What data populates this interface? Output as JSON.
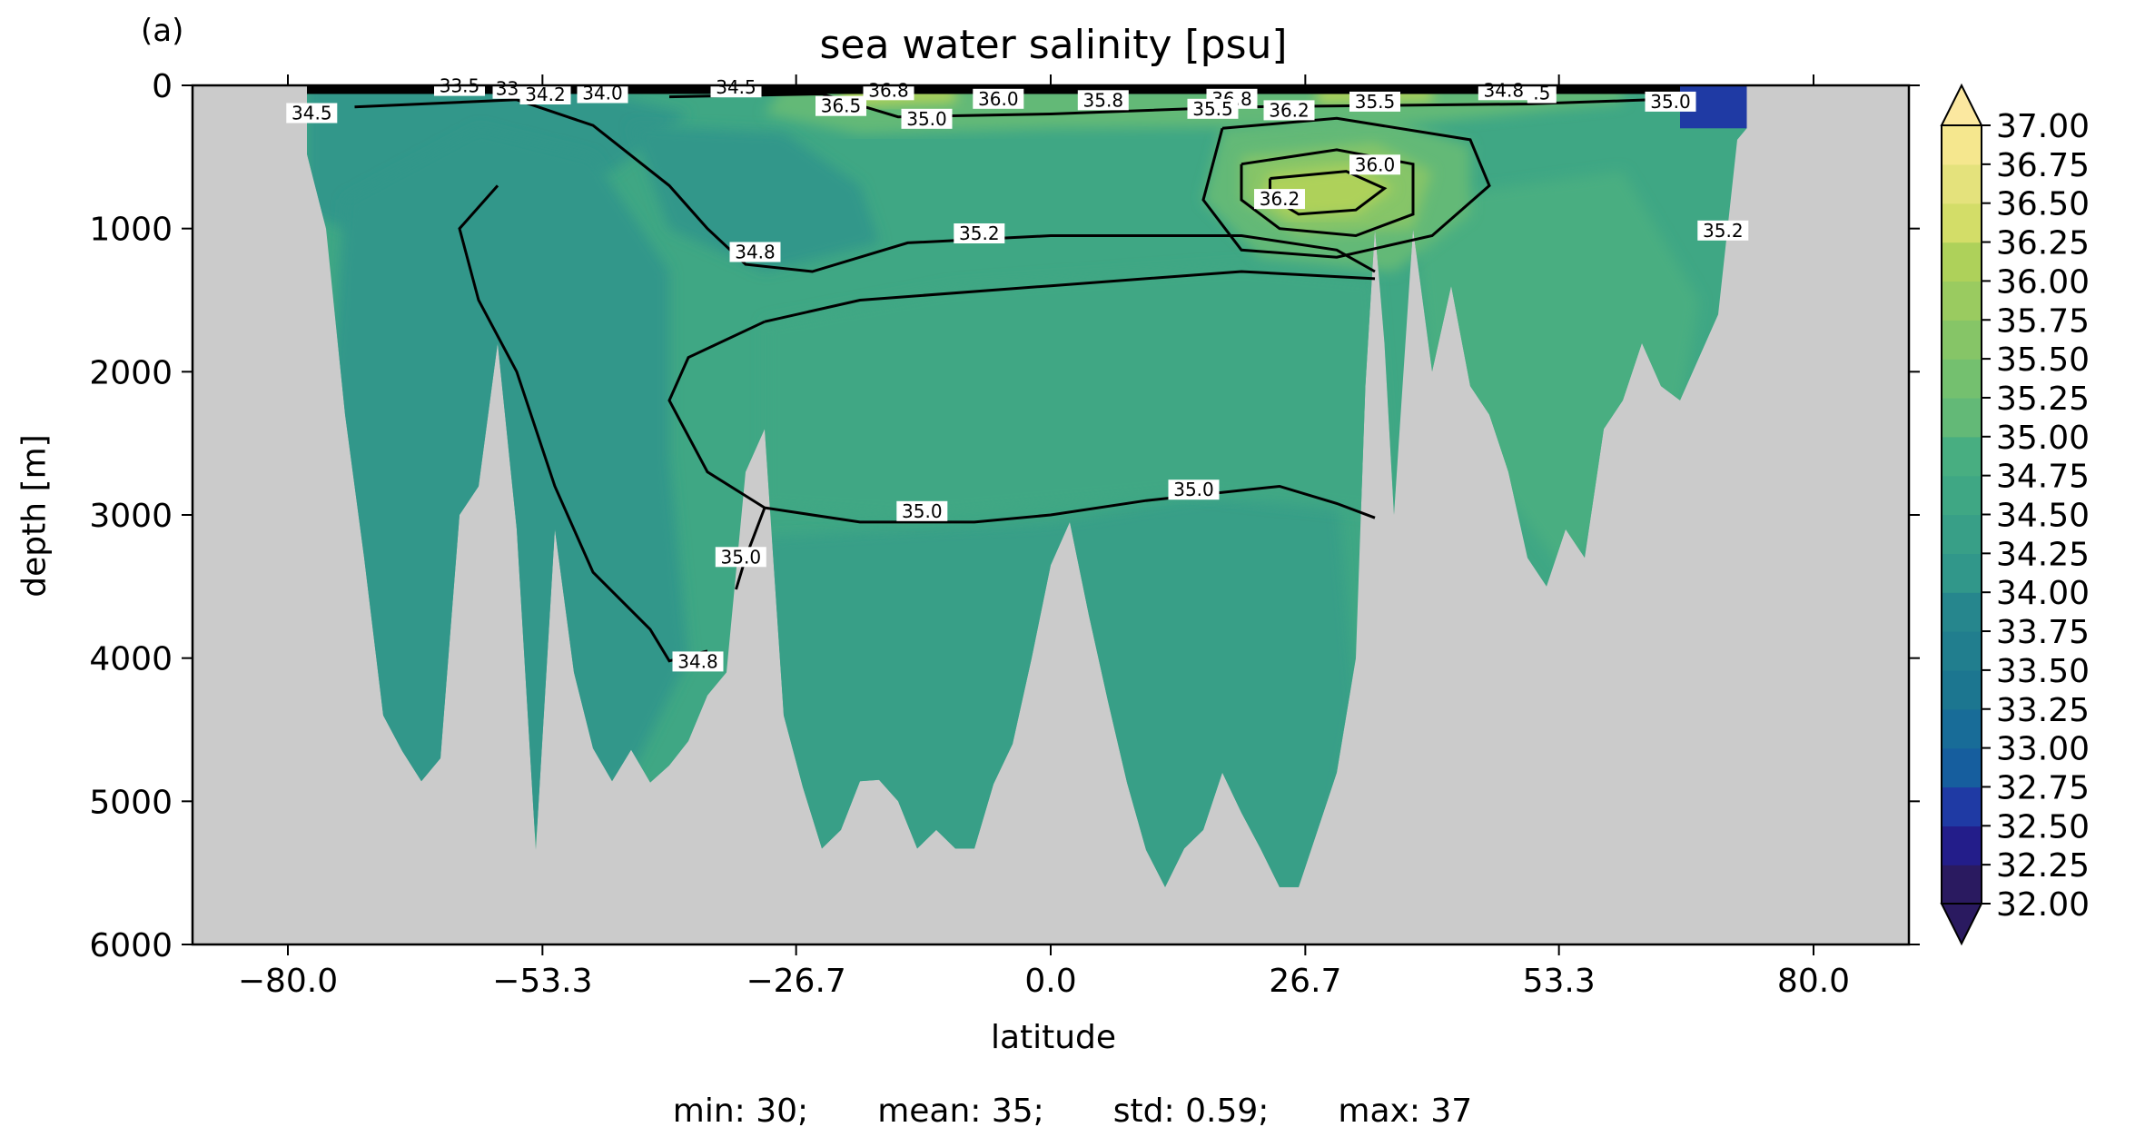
{
  "panel_label": "(a)",
  "stats": {
    "min": "min: 30;",
    "mean": "mean: 35;",
    "std": "std: 0.59;",
    "max": "max: 37"
  },
  "colors": {
    "land_mask": "#cbcbcb",
    "contour_line": "#000000",
    "colormap": [
      "#2a1a60",
      "#231d8a",
      "#1f3aa4",
      "#1a50a4",
      "#165e9e",
      "#186c98",
      "#1c7690",
      "#217e8e",
      "#26868d",
      "#2b8f8b",
      "#31978a",
      "#389f87",
      "#3fa784",
      "#48ae81",
      "#54b37d",
      "#63b977",
      "#74c06f",
      "#86c567",
      "#9acb60",
      "#aed15a",
      "#c1d75a",
      "#d3dd68",
      "#e4e27c",
      "#f5e78e",
      "#fbe8a0"
    ]
  },
  "chart_data": {
    "type": "contour-section",
    "title": "sea water salinity [psu]",
    "xlabel": "latitude",
    "ylabel": "depth [m]",
    "xlim": [
      -90,
      90
    ],
    "ylim": [
      6000,
      0
    ],
    "x_ticks": [
      "−80.0",
      "−53.3",
      "−26.7",
      "0.0",
      "26.7",
      "53.3",
      "80.0"
    ],
    "x_tick_values": [
      -80.0,
      -53.3,
      -26.7,
      0.0,
      26.7,
      53.3,
      80.0
    ],
    "y_ticks": [
      "0",
      "1000",
      "2000",
      "3000",
      "4000",
      "5000",
      "6000"
    ],
    "y_tick_values": [
      0,
      1000,
      2000,
      3000,
      4000,
      5000,
      6000
    ],
    "colorbar": {
      "ticks": [
        "37.00",
        "36.75",
        "36.50",
        "36.25",
        "36.00",
        "35.75",
        "35.50",
        "35.25",
        "35.00",
        "34.75",
        "34.50",
        "34.25",
        "34.00",
        "33.75",
        "33.50",
        "33.25",
        "33.00",
        "32.75",
        "32.50",
        "32.25",
        "32.00"
      ],
      "min": 32.0,
      "max": 37.0,
      "extend": "both"
    },
    "contour_labels": [
      {
        "text": "34.5",
        "lat": -77.5,
        "depth": 200
      },
      {
        "text": "33.5",
        "lat": -62,
        "depth": 10
      },
      {
        "text": "33",
        "lat": -57,
        "depth": 30
      },
      {
        "text": "34.2",
        "lat": -53,
        "depth": 70
      },
      {
        "text": "34.0",
        "lat": -47,
        "depth": 60
      },
      {
        "text": "34.5",
        "lat": -33,
        "depth": 20
      },
      {
        "text": "36.5",
        "lat": -22,
        "depth": 150
      },
      {
        "text": "36.8",
        "lat": -17,
        "depth": 40
      },
      {
        "text": "36.0",
        "lat": -5.5,
        "depth": 100
      },
      {
        "text": "35.0",
        "lat": -13,
        "depth": 240
      },
      {
        "text": "35.8",
        "lat": 5.5,
        "depth": 110
      },
      {
        "text": "36.8",
        "lat": 19,
        "depth": 100
      },
      {
        "text": "35.5",
        "lat": 17,
        "depth": 170
      },
      {
        "text": "36.2",
        "lat": 25,
        "depth": 180
      },
      {
        "text": "35.5",
        "lat": 34,
        "depth": 120
      },
      {
        "text": "34.8",
        "lat": 47.5,
        "depth": 40
      },
      {
        "text": ".5",
        "lat": 51.5,
        "depth": 60
      },
      {
        "text": "35.0",
        "lat": 65,
        "depth": 120
      },
      {
        "text": "36.0",
        "lat": 34,
        "depth": 560
      },
      {
        "text": "36.2",
        "lat": 24,
        "depth": 800
      },
      {
        "text": "35.2",
        "lat": 70.5,
        "depth": 1020
      },
      {
        "text": "34.8",
        "lat": -31,
        "depth": 1170
      },
      {
        "text": "35.2",
        "lat": -7.5,
        "depth": 1040
      },
      {
        "text": "35.0",
        "lat": -13.5,
        "depth": 2980
      },
      {
        "text": "35.0",
        "lat": 15,
        "depth": 2830
      },
      {
        "text": "35.0",
        "lat": -32.5,
        "depth": 3300
      },
      {
        "text": "34.8",
        "lat": -37,
        "depth": 4030
      }
    ],
    "bathymetry_max_depth": [
      {
        "lat": -78,
        "depth": 480
      },
      {
        "lat": -76,
        "depth": 1000
      },
      {
        "lat": -74,
        "depth": 2300
      },
      {
        "lat": -72,
        "depth": 3300
      },
      {
        "lat": -70,
        "depth": 4400
      },
      {
        "lat": -68,
        "depth": 4650
      },
      {
        "lat": -66,
        "depth": 4860
      },
      {
        "lat": -64,
        "depth": 4700
      },
      {
        "lat": -62,
        "depth": 3000
      },
      {
        "lat": -60,
        "depth": 2800
      },
      {
        "lat": -58,
        "depth": 1800
      },
      {
        "lat": -56,
        "depth": 3100
      },
      {
        "lat": -54,
        "depth": 5340
      },
      {
        "lat": -52,
        "depth": 3100
      },
      {
        "lat": -50,
        "depth": 4100
      },
      {
        "lat": -48,
        "depth": 4630
      },
      {
        "lat": -46,
        "depth": 4860
      },
      {
        "lat": -44,
        "depth": 4640
      },
      {
        "lat": -42,
        "depth": 4870
      },
      {
        "lat": -40,
        "depth": 4750
      },
      {
        "lat": -38,
        "depth": 4580
      },
      {
        "lat": -36,
        "depth": 4260
      },
      {
        "lat": -34,
        "depth": 4100
      },
      {
        "lat": -32,
        "depth": 2700
      },
      {
        "lat": -30,
        "depth": 2400
      },
      {
        "lat": -28,
        "depth": 4400
      },
      {
        "lat": -26,
        "depth": 4900
      },
      {
        "lat": -24,
        "depth": 5330
      },
      {
        "lat": -22,
        "depth": 5200
      },
      {
        "lat": -20,
        "depth": 4860
      },
      {
        "lat": -18,
        "depth": 4850
      },
      {
        "lat": -16,
        "depth": 5000
      },
      {
        "lat": -14,
        "depth": 5330
      },
      {
        "lat": -12,
        "depth": 5200
      },
      {
        "lat": -10,
        "depth": 5330
      },
      {
        "lat": -8,
        "depth": 5330
      },
      {
        "lat": -6,
        "depth": 4880
      },
      {
        "lat": -4,
        "depth": 4600
      },
      {
        "lat": -2,
        "depth": 4000
      },
      {
        "lat": 0,
        "depth": 3350
      },
      {
        "lat": 2,
        "depth": 3050
      },
      {
        "lat": 4,
        "depth": 3700
      },
      {
        "lat": 6,
        "depth": 4300
      },
      {
        "lat": 8,
        "depth": 4870
      },
      {
        "lat": 10,
        "depth": 5340
      },
      {
        "lat": 12,
        "depth": 5600
      },
      {
        "lat": 14,
        "depth": 5330
      },
      {
        "lat": 16,
        "depth": 5200
      },
      {
        "lat": 18,
        "depth": 4800
      },
      {
        "lat": 20,
        "depth": 5080
      },
      {
        "lat": 22,
        "depth": 5330
      },
      {
        "lat": 24,
        "depth": 5600
      },
      {
        "lat": 26,
        "depth": 5600
      },
      {
        "lat": 28,
        "depth": 5200
      },
      {
        "lat": 30,
        "depth": 4800
      },
      {
        "lat": 32,
        "depth": 4000
      },
      {
        "lat": 33,
        "depth": 2100
      },
      {
        "lat": 34,
        "depth": 1000
      },
      {
        "lat": 35,
        "depth": 1800
      },
      {
        "lat": 36,
        "depth": 3000
      },
      {
        "lat": 38,
        "depth": 1000
      },
      {
        "lat": 40,
        "depth": 2000
      },
      {
        "lat": 42,
        "depth": 1400
      },
      {
        "lat": 44,
        "depth": 2100
      },
      {
        "lat": 46,
        "depth": 2300
      },
      {
        "lat": 48,
        "depth": 2700
      },
      {
        "lat": 50,
        "depth": 3300
      },
      {
        "lat": 52,
        "depth": 3500
      },
      {
        "lat": 54,
        "depth": 3100
      },
      {
        "lat": 56,
        "depth": 3300
      },
      {
        "lat": 58,
        "depth": 2400
      },
      {
        "lat": 60,
        "depth": 2200
      },
      {
        "lat": 62,
        "depth": 1800
      },
      {
        "lat": 64,
        "depth": 2100
      },
      {
        "lat": 66,
        "depth": 2200
      },
      {
        "lat": 68,
        "depth": 1900
      },
      {
        "lat": 70,
        "depth": 1600
      },
      {
        "lat": 72,
        "depth": 380
      },
      {
        "lat": 73,
        "depth": 300
      }
    ]
  }
}
